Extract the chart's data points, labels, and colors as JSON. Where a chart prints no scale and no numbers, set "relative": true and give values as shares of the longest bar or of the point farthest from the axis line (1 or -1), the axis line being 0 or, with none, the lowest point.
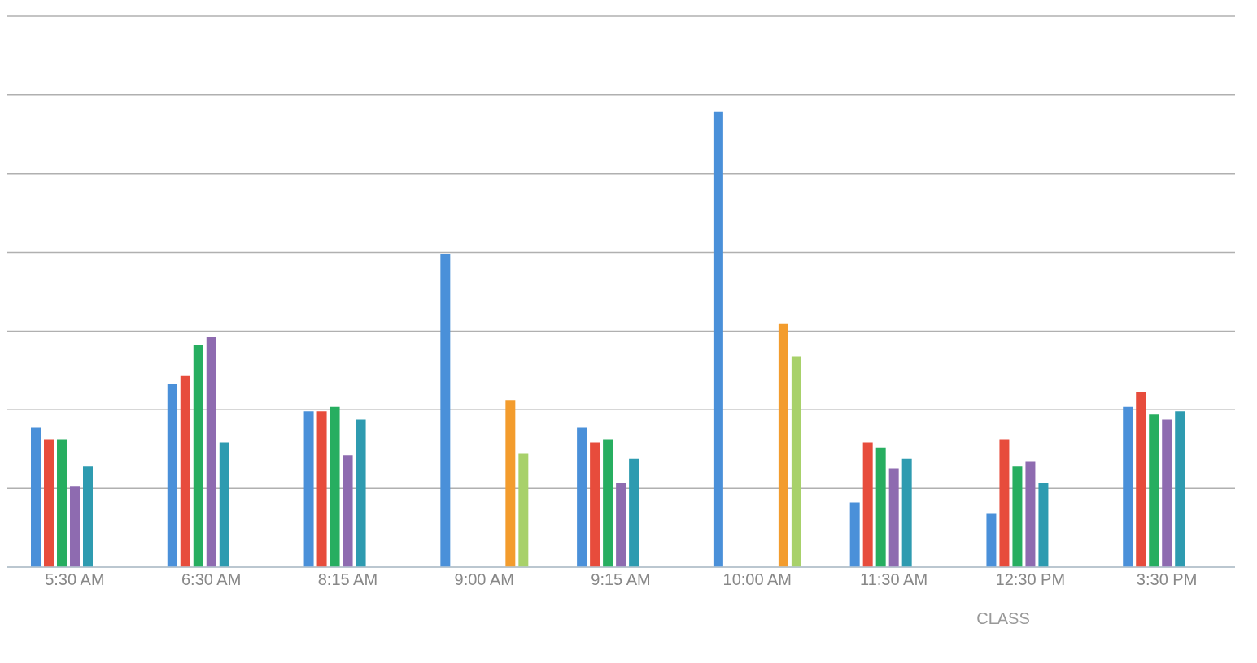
{
  "chart_data": {
    "type": "bar",
    "relative": true,
    "xlabel": "CLASS",
    "grid": "y",
    "categories": [
      "5:30 AM",
      "6:30 AM",
      "8:15 AM",
      "9:00 AM",
      "9:15 AM",
      "10:00 AM",
      "11:30 AM",
      "12:30 PM",
      "3:30 PM"
    ],
    "series": [
      {
        "color": "#4a90d9",
        "values": [
          0.306,
          0.402,
          0.342,
          0.687,
          0.306,
          1,
          0.142,
          0.117,
          0.352
        ]
      },
      {
        "color": "#e74c3c",
        "values": [
          0.281,
          0.42,
          0.342,
          null,
          0.274,
          null,
          0.274,
          0.281,
          0.384
        ]
      },
      {
        "color": "#27ae60",
        "values": [
          0.281,
          0.488,
          0.352,
          null,
          0.281,
          null,
          0.263,
          0.221,
          0.335
        ]
      },
      {
        "color": "#8e6bb0",
        "values": [
          0.178,
          0.505,
          0.246,
          null,
          0.185,
          null,
          0.217,
          0.231,
          0.324
        ]
      },
      {
        "color": "#2e9bb0",
        "values": [
          0.221,
          0.274,
          0.324,
          null,
          0.238,
          null,
          0.238,
          0.185,
          0.342
        ]
      },
      {
        "color": "#f39c2d",
        "values": [
          null,
          null,
          null,
          0.367,
          null,
          0.534,
          null,
          null,
          null
        ]
      },
      {
        "color": "#a8d16a",
        "values": [
          null,
          null,
          null,
          0.249,
          null,
          0.463,
          null,
          null,
          null
        ]
      }
    ]
  }
}
